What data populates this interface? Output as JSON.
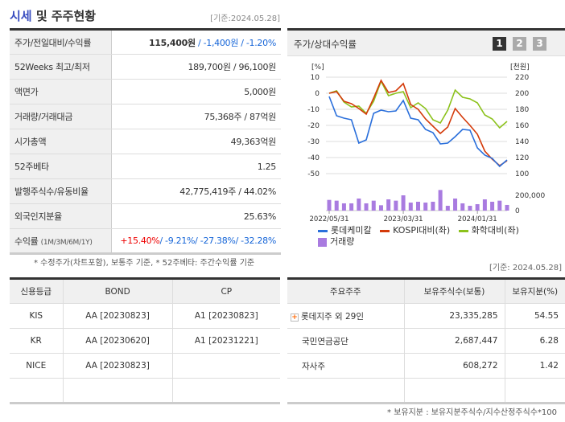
{
  "header": {
    "title_hl": "시세",
    "title_rest": " 및 주주현황",
    "date": "[기준:2024.05.28]"
  },
  "info_rows": [
    {
      "label": "주가/전일대비/수익률",
      "price": "115,400원",
      "sep": " / ",
      "change": "-1,400원 / -1.20%"
    },
    {
      "label": "52Weeks 최고/최저",
      "value": "189,700원 / 96,100원"
    },
    {
      "label": "액면가",
      "value": "5,000원"
    },
    {
      "label": "거래량/거래대금",
      "value": "75,368주 / 87억원"
    },
    {
      "label": "시가총액",
      "value": "49,363억원"
    },
    {
      "label": "52주베타",
      "value": "1.25"
    },
    {
      "label": "발행주식수/유동비율",
      "value": "42,775,419주 / 44.02%"
    },
    {
      "label": "외국인지분율",
      "value": "25.63%"
    },
    {
      "label": "수익률",
      "label_small": "(1M/3M/6M/1Y)",
      "r1m": "+15.40%",
      "r_rest": "/ -9.21%/ -27.38%/ -32.28%"
    }
  ],
  "note1": "* 수정주가(차트포함), 보통주 기준, * 52주베타: 주간수익률 기준",
  "chart_panel": {
    "title": "주가/상대수익률",
    "pages": [
      "1",
      "2",
      "3"
    ],
    "active_page": "1"
  },
  "chart_data": {
    "type": "line",
    "left_axis_unit": "[%]",
    "right_axis_unit": "[천원]",
    "left_ticks": [
      "10",
      "0",
      "-10",
      "-20",
      "-30",
      "-40",
      "-50"
    ],
    "right_ticks": [
      "220",
      "200",
      "180",
      "160",
      "140",
      "120",
      "100"
    ],
    "volume_ticks": [
      "200,000",
      "0"
    ],
    "x_ticks": [
      "2022/05/31",
      "2023/03/31",
      "2024/01/31"
    ],
    "ylim": [
      -50,
      10
    ],
    "volume_max": 200000,
    "grid": true,
    "series": [
      {
        "name": "롯데케미칼",
        "color": "#2a6fdb",
        "values": [
          -2,
          -14,
          -15.5,
          -16.5,
          -31,
          -29,
          -12.5,
          -10.5,
          -11.5,
          -11,
          -4.5,
          -15.5,
          -16.5,
          -22.5,
          -24.5,
          -31.5,
          -31,
          -27,
          -22.5,
          -23,
          -34,
          -38.5,
          -40.5,
          -45.5,
          -41.5
        ]
      },
      {
        "name": "KOSPI대비(좌)",
        "color": "#d43a0a",
        "values": [
          0,
          1,
          -5,
          -6.5,
          -9.5,
          -13,
          -3,
          8,
          0.5,
          1.5,
          6,
          -7,
          -10,
          -16,
          -20.5,
          -25,
          -21,
          -9.5,
          -15,
          -20,
          -25.5,
          -36,
          -41,
          -45,
          -42
        ]
      },
      {
        "name": "화학대비(좌)",
        "color": "#8cc21c",
        "values": [
          0,
          1.5,
          -5.5,
          -8.5,
          -8,
          -12.5,
          -5,
          7.5,
          -1.5,
          0,
          1,
          -9,
          -6,
          -9.5,
          -16.5,
          -18.5,
          -10.5,
          2,
          -2.5,
          -3.5,
          -6,
          -13.5,
          -16,
          -21.5,
          -17.5
        ]
      }
    ],
    "volume": {
      "name": "거래량",
      "color": "#a97be0",
      "values": [
        140000,
        130000,
        95000,
        95000,
        158000,
        95000,
        130000,
        70000,
        147000,
        130000,
        200000,
        105000,
        116000,
        105000,
        116000,
        270000,
        63000,
        158000,
        95000,
        63000,
        84000,
        147000,
        116000,
        130000,
        74000
      ]
    }
  },
  "date2": "[기준: 2024.05.28]",
  "credit": {
    "headers": [
      "신용등급",
      "BOND",
      "CP"
    ],
    "rows": [
      [
        "KIS",
        "AA  [20230823]",
        "A1  [20230823]"
      ],
      [
        "KR",
        "AA  [20230620]",
        "A1  [20231221]"
      ],
      [
        "NICE",
        "AA  [20230823]",
        ""
      ],
      [
        "",
        "",
        ""
      ]
    ]
  },
  "shareholders": {
    "headers": [
      "주요주주",
      "보유주식수(보통)",
      "보유지분(%)"
    ],
    "rows": [
      [
        "롯데지주 외 29인",
        "23,335,285",
        "54.55"
      ],
      [
        "국민연금공단",
        "2,687,447",
        "6.28"
      ],
      [
        "자사주",
        "608,272",
        "1.42"
      ],
      [
        "",
        "",
        ""
      ]
    ],
    "expand_icon": "plus-icon"
  },
  "note2": "* 보유지분 : 보유지분주식수/지수산정주식수*100"
}
